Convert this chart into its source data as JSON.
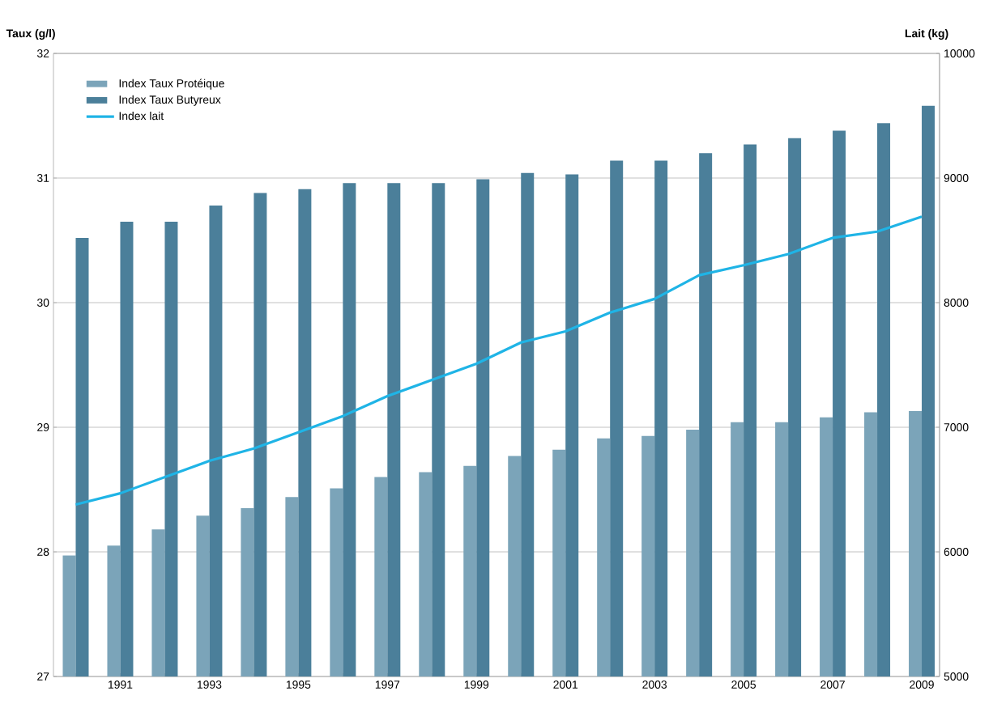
{
  "chart_data": {
    "type": "bar",
    "ylabel": "Taux (g/l)",
    "y2label": "Lait (kg)",
    "categories": [
      null,
      "1991",
      null,
      "1993",
      null,
      "1995",
      null,
      "1997",
      null,
      "1999",
      null,
      "2001",
      null,
      "2003",
      null,
      "2005",
      null,
      "2007",
      null,
      "2009"
    ],
    "series": [
      {
        "name": "Index Taux Protéique",
        "color": "#7ba4b9",
        "values": [
          27.97,
          28.05,
          28.18,
          28.29,
          28.35,
          28.44,
          28.51,
          28.6,
          28.64,
          28.69,
          28.77,
          28.82,
          28.91,
          28.93,
          28.98,
          29.04,
          29.04,
          29.08,
          29.12,
          29.13
        ]
      },
      {
        "name": "Index Taux Butyreux",
        "color": "#4b7f9a",
        "values": [
          30.52,
          30.65,
          30.65,
          30.78,
          30.88,
          30.91,
          30.96,
          30.96,
          30.96,
          30.99,
          31.04,
          31.03,
          31.14,
          31.14,
          31.2,
          31.27,
          31.32,
          31.38,
          31.44,
          31.58
        ]
      },
      {
        "name": "Index lait",
        "type": "line",
        "axis": "y2",
        "color": "#1fb4e6",
        "values": [
          6380,
          6470,
          6600,
          6730,
          6830,
          6960,
          7090,
          7250,
          7380,
          7510,
          7680,
          7770,
          7920,
          8030,
          8220,
          8300,
          8390,
          8520,
          8570,
          8690
        ]
      }
    ],
    "ylim": [
      27,
      32
    ],
    "yticks": [
      27,
      28,
      29,
      30,
      31,
      32
    ],
    "y2lim": [
      5000,
      10000
    ],
    "y2ticks": [
      5000,
      6000,
      7000,
      8000,
      9000,
      10000
    ],
    "grid": "y",
    "legend": "top left",
    "marker": "none",
    "line_style": "solid"
  }
}
